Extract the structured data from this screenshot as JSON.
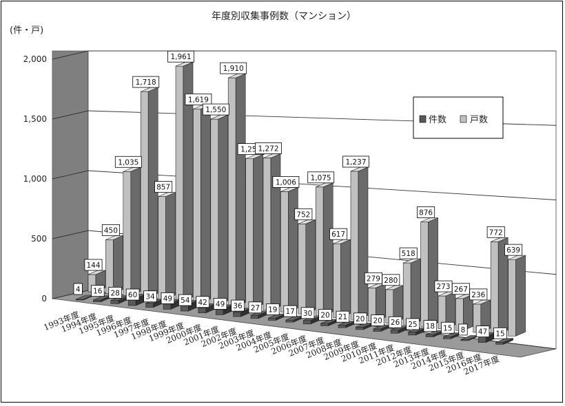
{
  "chart_data": {
    "type": "bar",
    "title": "年度別収集事例数（マンション）",
    "ylabel": "(件・戸)",
    "xlabel": "",
    "ylim": [
      0,
      2000
    ],
    "yticks": [
      "0",
      "500",
      "1,000",
      "1,500",
      "2,000"
    ],
    "categories": [
      "1993年度",
      "1994年度",
      "1995年度",
      "1996年度",
      "1997年度",
      "1998年度",
      "1999年度",
      "2000年度",
      "2001年度",
      "2002年度",
      "2003年度",
      "2004年度",
      "2005年度",
      "2006年度",
      "2007年度",
      "2008年度",
      "2009年度",
      "2010年度",
      "2011年度",
      "2012年度",
      "2013年度",
      "2014年度",
      "2015年度",
      "2016年度",
      "2017年度"
    ],
    "series": [
      {
        "name": "件数",
        "color": "#595959",
        "values": [
          4,
          16,
          28,
          60,
          34,
          49,
          54,
          42,
          49,
          36,
          27,
          19,
          17,
          30,
          20,
          21,
          20,
          20,
          26,
          25,
          18,
          15,
          8,
          47,
          15
        ]
      },
      {
        "name": "戸数",
        "color": "#c0c0c0",
        "values": [
          144,
          450,
          1035,
          1718,
          857,
          1961,
          1619,
          1550,
          1910,
          1250,
          1272,
          1006,
          752,
          1075,
          617,
          1237,
          279,
          280,
          518,
          876,
          273,
          267,
          236,
          772,
          639
        ]
      }
    ],
    "data_labels": {
      "件数": [
        "4",
        "16",
        "28",
        "60",
        "34",
        "49",
        "54",
        "42",
        "49",
        "36",
        "27",
        "19",
        "17",
        "30",
        "20",
        "21",
        "20",
        "20",
        "26",
        "25",
        "18",
        "15",
        "8",
        "47",
        "15"
      ],
      "戸数": [
        "144",
        "450",
        "1,035",
        "1,718",
        "857",
        "1,961",
        "1,619",
        "1,550",
        "1,910",
        "1,250",
        "1,272",
        "1,006",
        "752",
        "1,075",
        "617",
        "1,237",
        "279",
        "280",
        "518",
        "876",
        "273",
        "267",
        "236",
        "772",
        "639"
      ]
    },
    "legend_position": "right",
    "grid": true,
    "style": "3d-column"
  }
}
